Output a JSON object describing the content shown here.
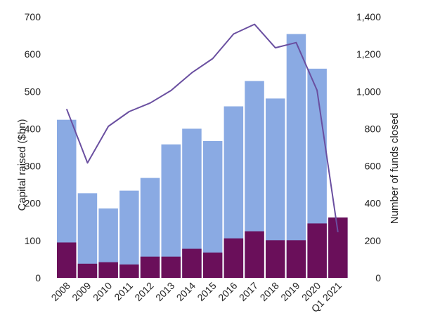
{
  "chart_data": {
    "type": "bar",
    "categories": [
      "2008",
      "2009",
      "2010",
      "2011",
      "2012",
      "2013",
      "2014",
      "2015",
      "2016",
      "2017",
      "2018",
      "2019",
      "2020",
      "Q1 2021"
    ],
    "series": [
      {
        "kind": "bar-bottom",
        "axis": "left",
        "values": [
          95,
          38,
          42,
          36,
          57,
          57,
          78,
          68,
          106,
          125,
          101,
          101,
          146,
          162
        ],
        "color": "#6a0f5a"
      },
      {
        "kind": "bar-total",
        "axis": "left",
        "values": [
          424,
          227,
          186,
          234,
          268,
          358,
          400,
          367,
          460,
          528,
          481,
          654,
          561,
          162
        ],
        "color": "#8aaae3"
      },
      {
        "kind": "line",
        "axis": "right",
        "values": [
          906,
          617,
          813,
          892,
          938,
          1005,
          1100,
          1176,
          1308,
          1360,
          1234,
          1262,
          1006,
          245
        ],
        "color": "#6a4fa0"
      }
    ],
    "ylabel": "Capital raised ($bn)",
    "ylim": [
      0,
      700
    ],
    "yticks": [
      "0",
      "100",
      "200",
      "300",
      "400",
      "500",
      "600",
      "700"
    ],
    "y2label": "Number of funds closed",
    "y2lim": [
      0,
      1400
    ],
    "y2ticks": [
      "0",
      "200",
      "400",
      "600",
      "800",
      "1,000",
      "1,200",
      "1,400"
    ],
    "grid": false,
    "legend": "none"
  }
}
